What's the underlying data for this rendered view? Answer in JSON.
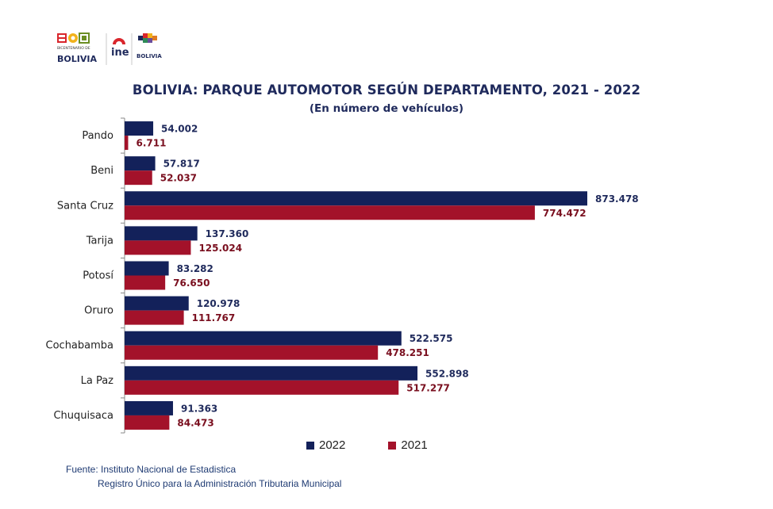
{
  "logos": {
    "bicentenario_text": "BICENTENARIO DE",
    "bolivia_text": "BOLIVIA",
    "ine_text": "ine",
    "estado_text": "BOLIVIA"
  },
  "chart_data": {
    "type": "bar",
    "orientation": "horizontal",
    "title": "BOLIVIA: PARQUE AUTOMOTOR SEGÚN DEPARTAMENTO, 2021 - 2022",
    "subtitle": "(En número de vehículos)",
    "categories": [
      "Pando",
      "Beni",
      "Santa Cruz",
      "Tarija",
      "Potosí",
      "Oruro",
      "Cochabamba",
      "La Paz",
      "Chuquisaca"
    ],
    "series": [
      {
        "name": "2022",
        "color": "#13215a",
        "values": [
          54002,
          57817,
          873478,
          137360,
          83282,
          120978,
          522575,
          552898,
          91363
        ],
        "labels": [
          "54.002",
          "57.817",
          "873.478",
          "137.360",
          "83.282",
          "120.978",
          "522.575",
          "552.898",
          "91.363"
        ],
        "label_color": "#1f2a5c"
      },
      {
        "name": "2021",
        "color": "#a3122a",
        "values": [
          6711,
          52037,
          774472,
          125024,
          76650,
          111767,
          478251,
          517277,
          84473
        ],
        "labels": [
          "6.711",
          "52.037",
          "774.472",
          "125.024",
          "76.650",
          "111.767",
          "478.251",
          "517.277",
          "84.473"
        ],
        "label_color": "#7a0f1f"
      }
    ],
    "xlim": [
      0,
      900000
    ],
    "grid": false,
    "legend_position": "bottom"
  },
  "footer": {
    "source_line": "Fuente: Instituto Nacional de Estadistica",
    "registry_line": "Registro Único para la Administración Tributaria Municipal"
  }
}
